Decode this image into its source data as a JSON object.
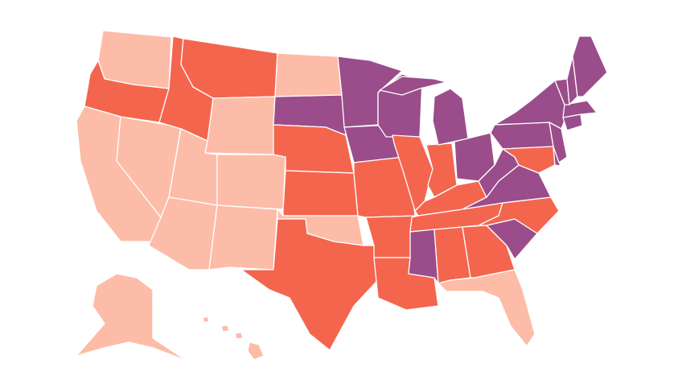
{
  "map": {
    "palette": [
      "#fdbca8",
      "#f4654e",
      "#9a4d8a"
    ]
  }
}
